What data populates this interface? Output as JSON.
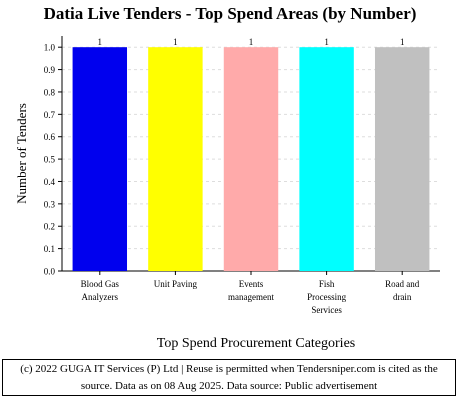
{
  "chart_data": {
    "type": "bar",
    "title": "Datia Live Tenders - Top Spend Areas (by Number)",
    "xlabel": "Top Spend Procurement Categories",
    "ylabel": "Number of Tenders",
    "categories": [
      [
        "Blood Gas",
        "Analyzers"
      ],
      [
        "Unit Paving"
      ],
      [
        "Events",
        "management"
      ],
      [
        "Fish",
        "Processing",
        "Services"
      ],
      [
        "Road and",
        "drain"
      ]
    ],
    "values": [
      1,
      1,
      1,
      1,
      1
    ],
    "data_labels": [
      "1",
      "1",
      "1",
      "1",
      "1"
    ],
    "bar_colors": [
      "#0000ee",
      "#ffff00",
      "#ffaaaa",
      "#00ffff",
      "#c0c0c0"
    ],
    "yticks": [
      "0.0",
      "0.1",
      "0.2",
      "0.3",
      "0.4",
      "0.5",
      "0.6",
      "0.7",
      "0.8",
      "0.9",
      "1.0"
    ],
    "ylim": [
      0,
      1.05
    ],
    "grid": true,
    "legend": "none"
  },
  "footer": {
    "line1": "(c) 2022 GUGA IT Services (P) Ltd | Reuse is permitted when Tendersniper.com is cited as the",
    "line2": "source. Data as on 08 Aug 2025. Data source: Public advertisement"
  }
}
